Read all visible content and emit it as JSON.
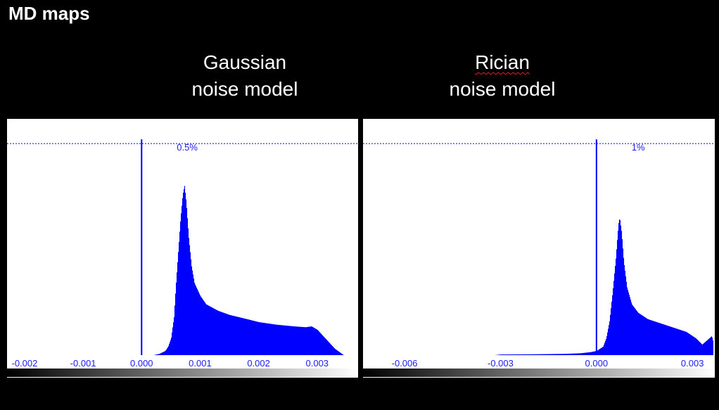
{
  "slide": {
    "title": "MD maps"
  },
  "panels": [
    {
      "title_line1": "Gaussian",
      "title_line2": "noise model"
    },
    {
      "title_line1": "Rician",
      "title_line2": "noise model"
    }
  ],
  "colors": {
    "bars": "#0000ff",
    "axis_text": "#1a1aff",
    "background": "#000000"
  },
  "chart_data": [
    {
      "type": "histogram",
      "title": "Gaussian noise model",
      "ref_label": "0.5%",
      "x_ticks": [
        -0.002,
        -0.001,
        0.0,
        0.001,
        0.002,
        0.003
      ],
      "x_tick_labels": [
        "-0.002",
        "-0.001",
        "0.000",
        "0.001",
        "0.002",
        "0.003"
      ],
      "xlim": [
        -0.0023,
        0.0037
      ],
      "ylim": [
        0,
        0.54
      ],
      "ref_line_y": 0.5,
      "vertical_line_x": 0.0,
      "grid": false,
      "colorbar": "black-to-white",
      "points": [
        [
          0.0002,
          0.0
        ],
        [
          0.0003,
          0.003
        ],
        [
          0.0004,
          0.01
        ],
        [
          0.00045,
          0.02
        ],
        [
          0.0005,
          0.04
        ],
        [
          0.00055,
          0.09
        ],
        [
          0.00058,
          0.16
        ],
        [
          0.00062,
          0.24
        ],
        [
          0.00066,
          0.32
        ],
        [
          0.0007,
          0.38
        ],
        [
          0.00073,
          0.4
        ],
        [
          0.00076,
          0.36
        ],
        [
          0.0008,
          0.28
        ],
        [
          0.00085,
          0.21
        ],
        [
          0.0009,
          0.17
        ],
        [
          0.001,
          0.14
        ],
        [
          0.0011,
          0.12
        ],
        [
          0.0013,
          0.105
        ],
        [
          0.0015,
          0.095
        ],
        [
          0.0018,
          0.085
        ],
        [
          0.002,
          0.078
        ],
        [
          0.0023,
          0.072
        ],
        [
          0.0026,
          0.068
        ],
        [
          0.0028,
          0.066
        ],
        [
          0.0029,
          0.068
        ],
        [
          0.003,
          0.06
        ],
        [
          0.0031,
          0.045
        ],
        [
          0.0032,
          0.03
        ],
        [
          0.0033,
          0.015
        ],
        [
          0.0034,
          0.005
        ],
        [
          0.00345,
          0.0
        ]
      ]
    },
    {
      "type": "histogram",
      "title": "Rician noise model",
      "ref_label": "1%",
      "x_ticks": [
        -0.006,
        -0.003,
        0.0,
        0.003
      ],
      "x_tick_labels": [
        "-0.006",
        "-0.003",
        "0.000",
        "0.003"
      ],
      "xlim": [
        -0.0073,
        0.0037
      ],
      "ylim": [
        0,
        1.08
      ],
      "ref_line_y": 1.0,
      "vertical_line_x": 0.0,
      "grid": false,
      "colorbar": "black-to-white",
      "points": [
        [
          -0.0032,
          0.0
        ],
        [
          -0.003,
          0.003
        ],
        [
          -0.002,
          0.004
        ],
        [
          -0.001,
          0.006
        ],
        [
          -0.0005,
          0.009
        ],
        [
          -0.0002,
          0.014
        ],
        [
          0.0,
          0.02
        ],
        [
          0.0002,
          0.04
        ],
        [
          0.0003,
          0.08
        ],
        [
          0.0004,
          0.16
        ],
        [
          0.0005,
          0.3
        ],
        [
          0.0006,
          0.46
        ],
        [
          0.00068,
          0.62
        ],
        [
          0.00072,
          0.65
        ],
        [
          0.00078,
          0.58
        ],
        [
          0.00085,
          0.44
        ],
        [
          0.00095,
          0.32
        ],
        [
          0.0011,
          0.24
        ],
        [
          0.0013,
          0.2
        ],
        [
          0.0016,
          0.17
        ],
        [
          0.002,
          0.15
        ],
        [
          0.0024,
          0.13
        ],
        [
          0.0028,
          0.11
        ],
        [
          0.0031,
          0.08
        ],
        [
          0.0033,
          0.05
        ],
        [
          0.00345,
          0.07
        ],
        [
          0.0036,
          0.09
        ],
        [
          0.00365,
          0.06
        ]
      ]
    }
  ]
}
